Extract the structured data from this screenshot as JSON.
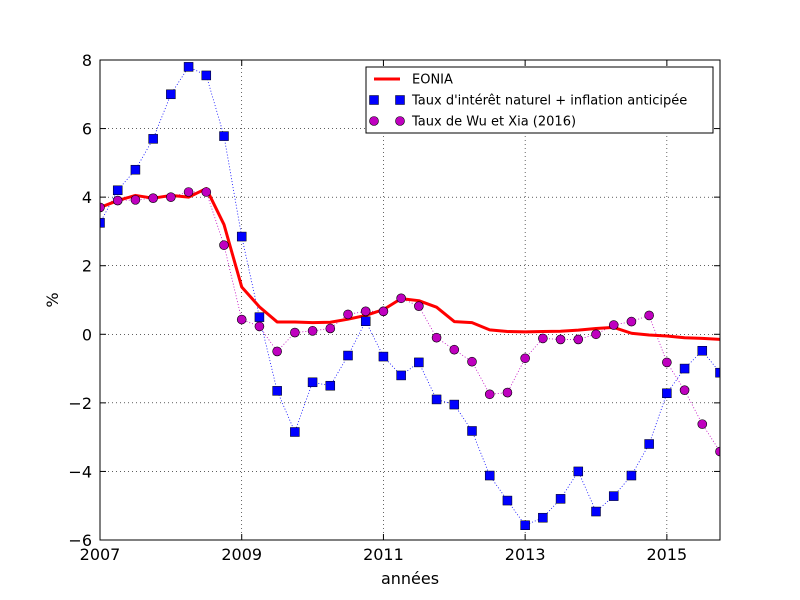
{
  "chart_data": {
    "type": "line",
    "title": "",
    "xlabel": "années",
    "ylabel": "%",
    "xlim": [
      2007,
      2015.75
    ],
    "ylim": [
      -6,
      8
    ],
    "xticks": [
      2007,
      2009,
      2011,
      2013,
      2015
    ],
    "xtick_labels": [
      "2007",
      "2009",
      "2011",
      "2013",
      "2015"
    ],
    "yticks": [
      -6,
      -4,
      -2,
      0,
      2,
      4,
      6,
      8
    ],
    "ytick_labels": [
      "−6",
      "−4",
      "−2",
      "0",
      "2",
      "4",
      "6",
      "8"
    ],
    "grid": true,
    "legend_position": "top-right",
    "series": [
      {
        "name": "EONIA",
        "style": "line",
        "color": "#ff0000",
        "x": [
          2007,
          2007.25,
          2007.5,
          2007.75,
          2008,
          2008.25,
          2008.5,
          2008.75,
          2009,
          2009.25,
          2009.5,
          2009.75,
          2010,
          2010.25,
          2010.5,
          2010.75,
          2011,
          2011.25,
          2011.5,
          2011.75,
          2012,
          2012.25,
          2012.5,
          2012.75,
          2013,
          2013.25,
          2013.5,
          2013.75,
          2014,
          2014.25,
          2014.5,
          2014.75,
          2015,
          2015.25,
          2015.5,
          2015.75
        ],
        "y": [
          3.7,
          3.9,
          4.05,
          3.97,
          4.05,
          4.0,
          4.25,
          3.2,
          1.38,
          0.8,
          0.36,
          0.36,
          0.34,
          0.35,
          0.44,
          0.55,
          0.72,
          1.04,
          0.98,
          0.79,
          0.37,
          0.34,
          0.13,
          0.08,
          0.07,
          0.08,
          0.09,
          0.12,
          0.17,
          0.2,
          0.03,
          -0.02,
          -0.05,
          -0.1,
          -0.12,
          -0.15
        ]
      },
      {
        "name": "Taux d'intérêt naturel + inflation anticipée",
        "style": "square",
        "color": "#0000ff",
        "x": [
          2007,
          2007.25,
          2007.5,
          2007.75,
          2008,
          2008.25,
          2008.5,
          2008.75,
          2009,
          2009.25,
          2009.5,
          2009.75,
          2010,
          2010.25,
          2010.5,
          2010.75,
          2011,
          2011.25,
          2011.5,
          2011.75,
          2012,
          2012.25,
          2012.5,
          2012.75,
          2013,
          2013.25,
          2013.5,
          2013.75,
          2014,
          2014.25,
          2014.5,
          2014.75,
          2015,
          2015.25,
          2015.5,
          2015.75
        ],
        "y": [
          3.25,
          4.2,
          4.8,
          5.7,
          7.0,
          7.8,
          7.55,
          5.78,
          2.85,
          0.5,
          -1.65,
          -2.85,
          -1.4,
          -1.5,
          -0.62,
          0.38,
          -0.65,
          -1.2,
          -0.82,
          -1.9,
          -2.05,
          -2.82,
          -4.12,
          -4.85,
          -5.57,
          -5.35,
          -4.8,
          -4.0,
          -5.17,
          -4.72,
          -4.12,
          -3.2,
          -1.72,
          -1.0,
          -0.48,
          -1.12
        ]
      },
      {
        "name": "Taux de Wu et Xia (2016)",
        "style": "circle",
        "color": "#bf00bf",
        "x": [
          2007,
          2007.25,
          2007.5,
          2007.75,
          2008,
          2008.25,
          2008.5,
          2008.75,
          2009,
          2009.25,
          2009.5,
          2009.75,
          2010,
          2010.25,
          2010.5,
          2010.75,
          2011,
          2011.25,
          2011.5,
          2011.75,
          2012,
          2012.25,
          2012.5,
          2012.75,
          2013,
          2013.25,
          2013.5,
          2013.75,
          2014,
          2014.25,
          2014.5,
          2014.75,
          2015,
          2015.25,
          2015.5,
          2015.75
        ],
        "y": [
          3.7,
          3.9,
          3.92,
          3.97,
          4.0,
          4.15,
          4.15,
          2.6,
          0.43,
          0.23,
          -0.5,
          0.05,
          0.1,
          0.17,
          0.58,
          0.67,
          0.67,
          1.05,
          0.82,
          -0.1,
          -0.45,
          -0.8,
          -1.75,
          -1.7,
          -0.7,
          -0.12,
          -0.15,
          -0.15,
          0.0,
          0.27,
          0.37,
          0.55,
          -0.82,
          -1.63,
          -2.62,
          -3.42
        ]
      }
    ]
  }
}
